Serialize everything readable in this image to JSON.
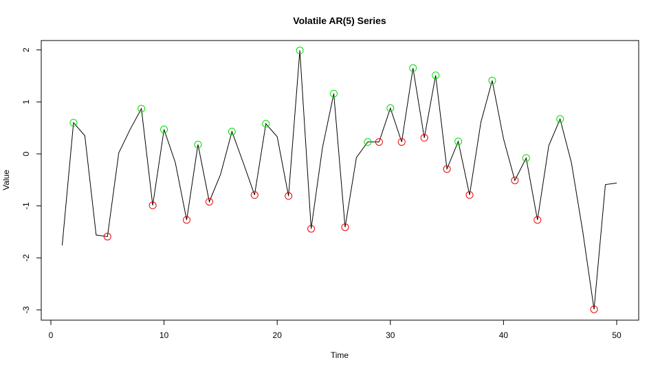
{
  "chart_data": {
    "type": "line",
    "title": "Volatile AR(5) Series",
    "xlabel": "Time",
    "ylabel": "Value",
    "xlim": [
      0,
      51
    ],
    "ylim": [
      -3.2,
      2.2
    ],
    "x_ticks": [
      0,
      10,
      20,
      30,
      40,
      50
    ],
    "y_ticks": [
      -3,
      -2,
      -1,
      0,
      1,
      2
    ],
    "grid": false,
    "colors": {
      "line": "#000000",
      "peak": "#00dd00",
      "trough": "#ee0000"
    },
    "series": [
      {
        "x": [
          1,
          2,
          3,
          4,
          5,
          6,
          7,
          8,
          9,
          10,
          11,
          12,
          13,
          14,
          15,
          16,
          17,
          18,
          19,
          20,
          21,
          22,
          23,
          24,
          25,
          26,
          27,
          28,
          29,
          30,
          31,
          32,
          33,
          34,
          35,
          36,
          37,
          38,
          39,
          40,
          41,
          42,
          43,
          44,
          45,
          46,
          47,
          48,
          49,
          50
        ],
        "values": [
          -1.76,
          0.6,
          0.35,
          -1.56,
          -1.59,
          0.02,
          0.47,
          0.87,
          -0.99,
          0.47,
          -0.17,
          -1.27,
          0.18,
          -0.92,
          -0.39,
          0.43,
          -0.17,
          -0.79,
          0.58,
          0.33,
          -0.81,
          1.99,
          -1.44,
          0.12,
          1.16,
          -1.41,
          -0.07,
          0.23,
          0.23,
          0.88,
          0.23,
          1.65,
          0.31,
          1.51,
          -0.29,
          0.24,
          -0.79,
          0.61,
          1.41,
          0.29,
          -0.51,
          -0.08,
          -1.27,
          0.16,
          0.67,
          -0.17,
          -1.49,
          -2.99,
          -0.59,
          -0.56
        ]
      }
    ],
    "peaks": {
      "x": [
        2,
        8,
        10,
        13,
        16,
        19,
        22,
        25,
        28,
        30,
        32,
        34,
        36,
        39,
        42,
        45
      ],
      "y": [
        0.6,
        0.87,
        0.47,
        0.18,
        0.43,
        0.58,
        1.99,
        1.16,
        0.23,
        0.88,
        1.65,
        1.51,
        0.24,
        1.41,
        -0.08,
        0.67
      ]
    },
    "troughs": {
      "x": [
        5,
        9,
        12,
        14,
        18,
        21,
        23,
        26,
        29,
        31,
        33,
        35,
        37,
        41,
        43,
        48
      ],
      "y": [
        -1.59,
        -0.99,
        -1.27,
        -0.92,
        -0.79,
        -0.81,
        -1.44,
        -1.41,
        0.23,
        0.23,
        0.31,
        -0.29,
        -0.79,
        -0.51,
        -1.27,
        -2.99
      ]
    }
  }
}
